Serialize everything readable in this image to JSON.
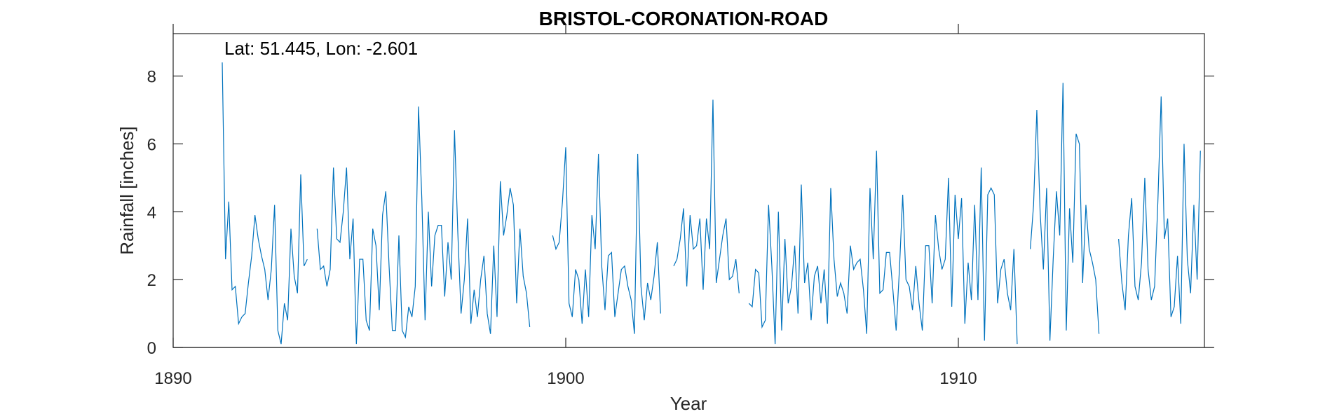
{
  "chart_data": {
    "type": "line",
    "title": "BRISTOL-CORONATION-ROAD",
    "xlabel": "Year",
    "ylabel": "Rainfall [inches]",
    "annotation": "Lat: 51.445, Lon: -2.601",
    "xlim": [
      1890,
      1916.5
    ],
    "ylim": [
      0,
      9.25
    ],
    "xticks": [
      1890,
      1900,
      1910
    ],
    "yticks": [
      0,
      2,
      4,
      6,
      8
    ],
    "grid": false,
    "legend": "none",
    "series_color": "#0072BD",
    "x_start": 1891.25,
    "x_step": 0.08333,
    "values": [
      8.4,
      2.6,
      4.3,
      1.7,
      1.8,
      0.7,
      0.9,
      1.0,
      1.9,
      2.7,
      3.9,
      3.2,
      2.7,
      2.3,
      1.4,
      2.3,
      4.2,
      0.5,
      0.1,
      1.3,
      0.8,
      3.5,
      2.1,
      1.6,
      5.1,
      2.4,
      2.6,
      null,
      null,
      3.5,
      2.3,
      2.4,
      1.8,
      2.3,
      5.3,
      3.2,
      3.1,
      4.0,
      5.3,
      2.6,
      3.8,
      0.1,
      2.6,
      2.6,
      0.8,
      0.5,
      3.5,
      3.0,
      1.1,
      3.9,
      4.6,
      2.4,
      0.5,
      0.5,
      3.3,
      0.5,
      0.3,
      1.2,
      0.9,
      1.8,
      7.1,
      4.4,
      0.8,
      4.0,
      1.8,
      3.3,
      3.6,
      3.6,
      1.5,
      3.1,
      2.0,
      6.4,
      3.4,
      1.0,
      2.0,
      3.8,
      0.7,
      1.7,
      0.9,
      2.0,
      2.7,
      1.0,
      0.4,
      3.0,
      0.9,
      4.9,
      3.3,
      3.9,
      4.7,
      4.2,
      1.3,
      3.5,
      2.1,
      1.6,
      0.6,
      null,
      null,
      null,
      null,
      null,
      null,
      3.3,
      2.9,
      3.1,
      4.3,
      5.9,
      1.3,
      0.9,
      2.3,
      2.0,
      0.7,
      2.3,
      0.9,
      3.9,
      2.9,
      5.7,
      2.4,
      1.1,
      2.7,
      2.8,
      0.9,
      1.6,
      2.3,
      2.4,
      1.8,
      1.4,
      0.4,
      5.7,
      1.8,
      0.8,
      1.9,
      1.4,
      2.1,
      3.1,
      1.0,
      null,
      null,
      null,
      2.4,
      2.6,
      3.2,
      4.1,
      1.8,
      3.9,
      2.9,
      3.0,
      3.8,
      1.7,
      3.8,
      2.9,
      7.3,
      1.9,
      2.6,
      3.3,
      3.8,
      2.0,
      2.1,
      2.6,
      1.6,
      null,
      null,
      1.3,
      1.2,
      2.3,
      2.2,
      0.6,
      0.8,
      4.2,
      2.4,
      0.1,
      4.0,
      0.5,
      3.2,
      1.3,
      1.8,
      3.0,
      1.0,
      4.8,
      1.9,
      2.5,
      0.8,
      2.1,
      2.4,
      1.3,
      2.3,
      0.7,
      4.7,
      2.6,
      1.5,
      1.9,
      1.6,
      1.0,
      3.0,
      2.3,
      2.5,
      2.6,
      1.7,
      0.4,
      4.7,
      2.6,
      5.8,
      1.6,
      1.7,
      2.8,
      2.8,
      1.7,
      0.5,
      2.3,
      4.5,
      2.0,
      1.8,
      1.1,
      2.4,
      1.3,
      0.5,
      3.0,
      3.0,
      1.3,
      3.9,
      2.9,
      2.3,
      2.6,
      5.0,
      1.2,
      4.5,
      3.2,
      4.4,
      0.7,
      2.5,
      1.4,
      4.2,
      1.4,
      5.3,
      0.2,
      4.5,
      4.7,
      4.5,
      1.3,
      2.3,
      2.6,
      1.6,
      1.1,
      2.9,
      0.1,
      null,
      null,
      null,
      2.9,
      4.2,
      7.0,
      4.0,
      2.3,
      4.7,
      0.2,
      2.6,
      4.6,
      3.3,
      7.8,
      0.5,
      4.1,
      2.5,
      6.3,
      6.0,
      1.9,
      4.2,
      2.9,
      2.5,
      2.0,
      0.4,
      null,
      null,
      null,
      null,
      null,
      3.2,
      1.9,
      1.1,
      3.3,
      4.4,
      1.8,
      1.4,
      2.5,
      5.0,
      2.3,
      1.4,
      1.8,
      4.3,
      7.4,
      3.2,
      3.8,
      0.9,
      1.2,
      2.7,
      0.7,
      6.0,
      2.6,
      1.6,
      4.2,
      2.0,
      5.8
    ]
  }
}
